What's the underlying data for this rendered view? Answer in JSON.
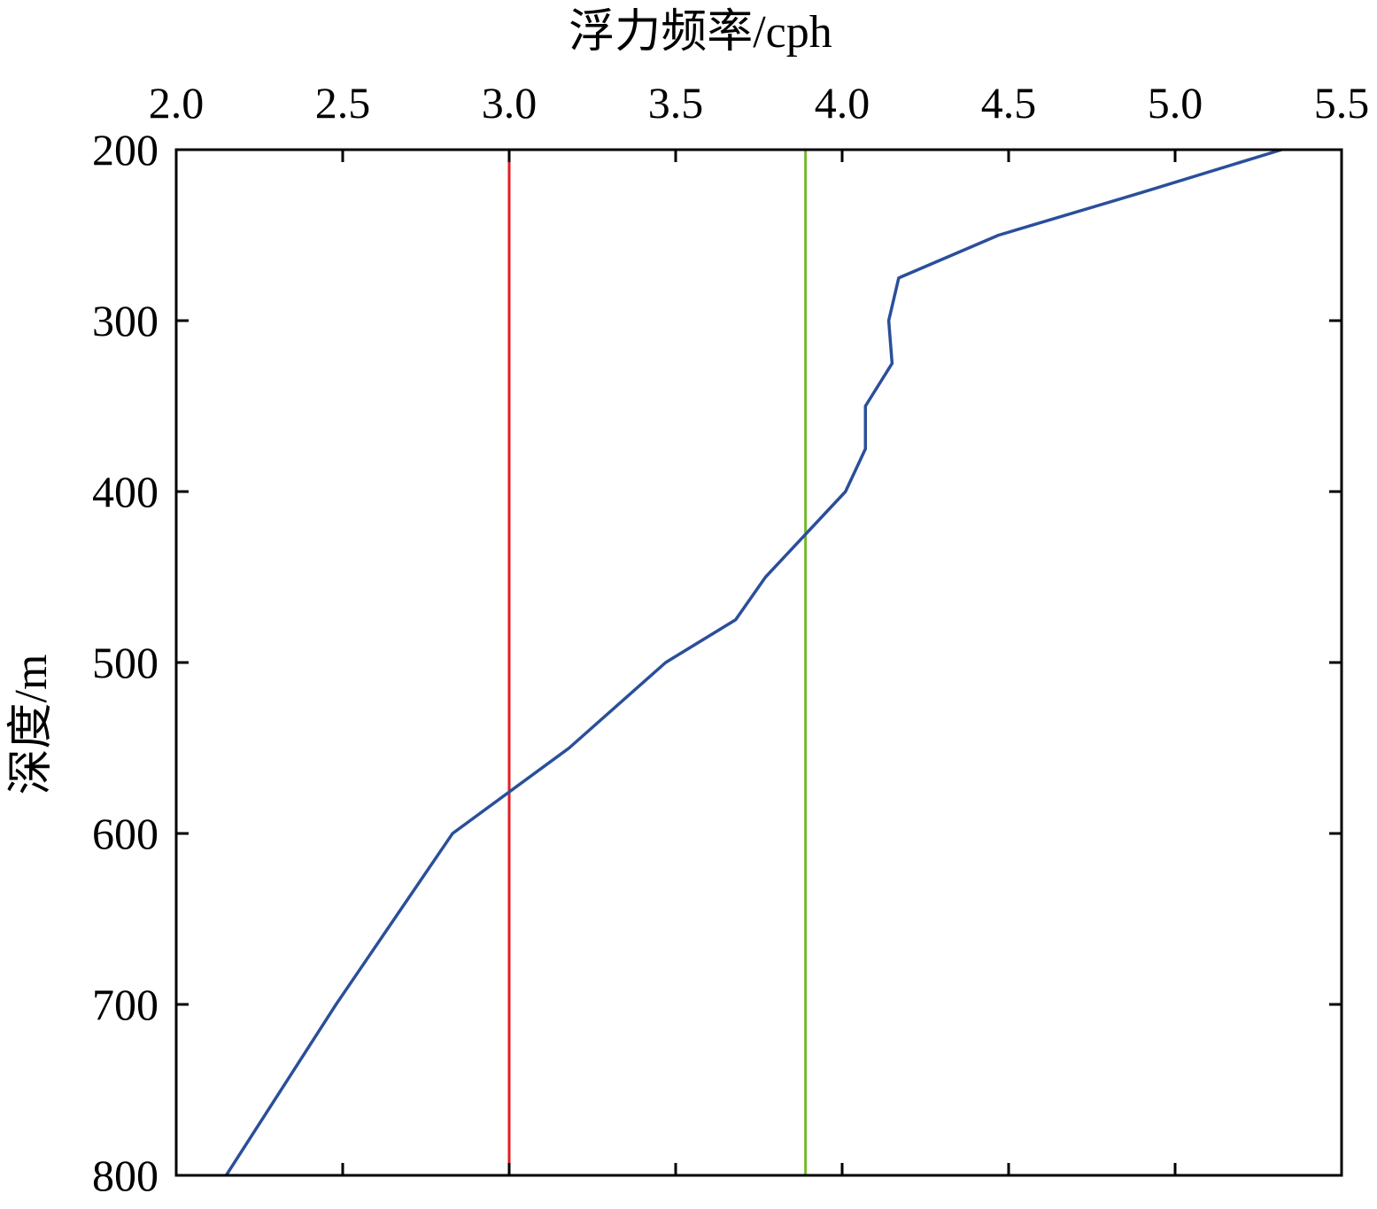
{
  "chart_data": {
    "type": "line",
    "title": "",
    "xlabel": "浮力频率/cph",
    "ylabel": "深度/m",
    "xlim": [
      2.0,
      5.5
    ],
    "ylim": [
      200,
      800
    ],
    "y_inverted": true,
    "x_axis_position": "top",
    "x_ticks": [
      "2.0",
      "2.5",
      "3.0",
      "3.5",
      "4.0",
      "4.5",
      "5.0",
      "5.5"
    ],
    "y_ticks": [
      "200",
      "300",
      "400",
      "500",
      "600",
      "700",
      "800"
    ],
    "grid": false,
    "legend": "none",
    "series": [
      {
        "color": "#2a4f9a",
        "points": [
          {
            "x": 5.32,
            "y": 200
          },
          {
            "x": 4.9,
            "y": 225
          },
          {
            "x": 4.47,
            "y": 250
          },
          {
            "x": 4.17,
            "y": 275
          },
          {
            "x": 4.14,
            "y": 300
          },
          {
            "x": 4.15,
            "y": 325
          },
          {
            "x": 4.07,
            "y": 350
          },
          {
            "x": 4.07,
            "y": 375
          },
          {
            "x": 4.01,
            "y": 400
          },
          {
            "x": 3.77,
            "y": 450
          },
          {
            "x": 3.68,
            "y": 475
          },
          {
            "x": 3.47,
            "y": 500
          },
          {
            "x": 3.18,
            "y": 550
          },
          {
            "x": 2.83,
            "y": 600
          },
          {
            "x": 2.48,
            "y": 700
          },
          {
            "x": 2.15,
            "y": 800
          }
        ]
      }
    ],
    "reference_lines": [
      {
        "x": 3.0,
        "color": "#dd1f26"
      },
      {
        "x": 3.89,
        "color": "#77b82a"
      }
    ]
  }
}
